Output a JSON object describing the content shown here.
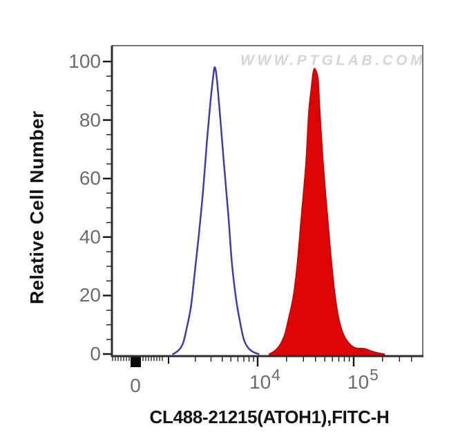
{
  "watermark": {
    "text": "WWW.PTGLAB.COM",
    "color": "#d5d5d5"
  },
  "chart_data": {
    "type": "area",
    "subtype": "flow-cytometry-histogram-overlay",
    "title": "",
    "xlabel": "CL488-21215(ATOH1),FITC-H",
    "ylabel": "Relative Cell Number",
    "x_scale": "biexponential: linear near 0, log decades through 10^5",
    "x_tick_labels": [
      {
        "text": "0",
        "exp": ""
      },
      {
        "text": "10",
        "exp": "4"
      },
      {
        "text": "10",
        "exp": "5"
      }
    ],
    "x_major_tick_log10": [
      4,
      5
    ],
    "y_ticks": [
      0,
      20,
      40,
      60,
      80,
      100
    ],
    "y_tick_labels": [
      "100",
      "80",
      "60",
      "40",
      "20",
      "0"
    ],
    "ylim": [
      0,
      106
    ],
    "grid": false,
    "legend": false,
    "zero_axis_marker": true,
    "colors": {
      "frame": "#757575",
      "axis": "#2e2e2e",
      "tick": "#1a1a1a",
      "tick_label": "#6b6b6b",
      "blob": "#0a0a0a"
    },
    "series": [
      {
        "name": "red filled histogram (ATOH1 CoraLite488 stained)",
        "stroke": "#c00505",
        "fill": "#dc0404",
        "points": [
          [
            4.12,
            0
          ],
          [
            4.18,
            1.2
          ],
          [
            4.23,
            3.1
          ],
          [
            4.28,
            6.6
          ],
          [
            4.32,
            12
          ],
          [
            4.37,
            19.6
          ],
          [
            4.41,
            30.2
          ],
          [
            4.45,
            45.5
          ],
          [
            4.5,
            64.4
          ],
          [
            4.53,
            82.1
          ],
          [
            4.56,
            91.5
          ],
          [
            4.58,
            96.7
          ],
          [
            4.6,
            97.4
          ],
          [
            4.63,
            93.9
          ],
          [
            4.65,
            82.1
          ],
          [
            4.68,
            66.7
          ],
          [
            4.72,
            50.2
          ],
          [
            4.76,
            34.9
          ],
          [
            4.8,
            21.9
          ],
          [
            4.84,
            13.0
          ],
          [
            4.89,
            7.1
          ],
          [
            4.95,
            3.8
          ],
          [
            5.02,
            2.1
          ],
          [
            5.11,
            1.9
          ],
          [
            5.17,
            1.2
          ],
          [
            5.24,
            0.5
          ],
          [
            5.32,
            0
          ]
        ]
      },
      {
        "name": "blue open histogram (control)",
        "stroke": "#3d3da4",
        "fill": "none",
        "points": [
          [
            3.05,
            0
          ],
          [
            3.11,
            1.2
          ],
          [
            3.16,
            3.5
          ],
          [
            3.2,
            8.3
          ],
          [
            3.25,
            16
          ],
          [
            3.29,
            26.7
          ],
          [
            3.34,
            40.8
          ],
          [
            3.39,
            56.8
          ],
          [
            3.43,
            72.6
          ],
          [
            3.47,
            86.1
          ],
          [
            3.5,
            94.6
          ],
          [
            3.515,
            97.9
          ],
          [
            3.53,
            96.9
          ],
          [
            3.55,
            91.5
          ],
          [
            3.58,
            80.9
          ],
          [
            3.62,
            65.6
          ],
          [
            3.67,
            47.9
          ],
          [
            3.71,
            31.4
          ],
          [
            3.76,
            18.4
          ],
          [
            3.81,
            9.7
          ],
          [
            3.85,
            4.5
          ],
          [
            3.9,
            1.9
          ],
          [
            3.95,
            0.7
          ],
          [
            4.01,
            0
          ]
        ]
      }
    ]
  }
}
